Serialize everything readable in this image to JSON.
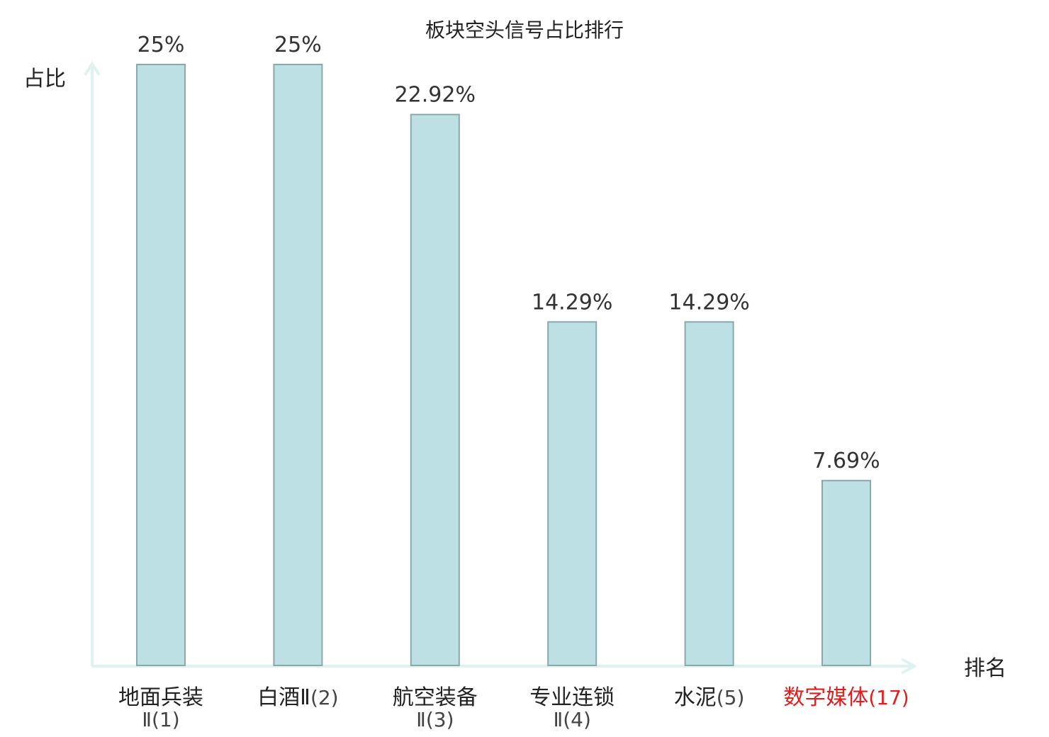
{
  "chart_data": {
    "type": "bar",
    "title": "板块空头信号占比排行",
    "ylabel": "占比",
    "xlabel": "排名",
    "categories": [
      {
        "name": "地面兵装",
        "rank": "Ⅱ(1)"
      },
      {
        "name": "白酒Ⅱ",
        "rank": "(2)"
      },
      {
        "name": "航空装备",
        "rank": "Ⅱ(3)"
      },
      {
        "name": "专业连锁",
        "rank": "Ⅱ(4)"
      },
      {
        "name": "水泥",
        "rank": "(5)"
      },
      {
        "name": "数字媒体",
        "rank": "(17)",
        "highlight": true
      }
    ],
    "values": [
      25,
      25,
      22.92,
      14.29,
      14.29,
      7.69
    ],
    "value_labels": [
      "25%",
      "25%",
      "22.92%",
      "14.29%",
      "14.29%",
      "7.69%"
    ],
    "ylim": [
      0,
      25
    ],
    "grid": false,
    "legend": "none",
    "colors": {
      "bar_fill": "#bce0e3",
      "bar_stroke": "#8aa9ab",
      "axis": "#dff2ef",
      "text": "#222222",
      "value_text": "#333333",
      "highlight": "#e01e1e",
      "rank_text": "#444444"
    }
  }
}
